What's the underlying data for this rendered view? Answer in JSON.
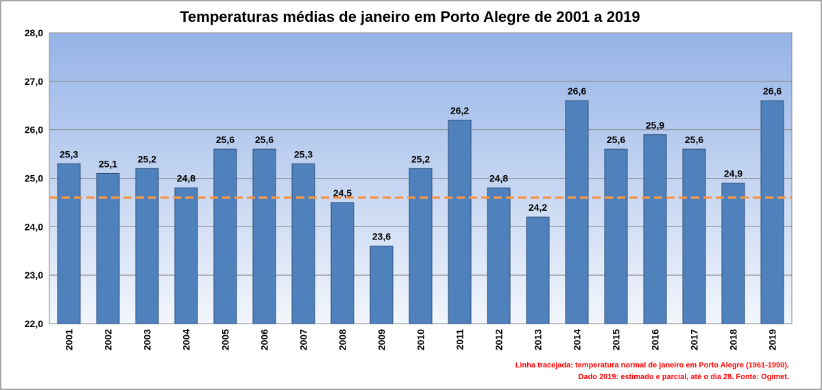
{
  "chart_data": {
    "type": "bar",
    "title": "Temperaturas médias de janeiro em Porto Alegre de 2001 a 2019",
    "xlabel": "",
    "ylabel": "",
    "categories": [
      "2001",
      "2002",
      "2003",
      "2004",
      "2005",
      "2006",
      "2007",
      "2008",
      "2009",
      "2010",
      "2011",
      "2012",
      "2013",
      "2014",
      "2015",
      "2016",
      "2017",
      "2018",
      "2019"
    ],
    "values": [
      25.3,
      25.1,
      25.2,
      24.8,
      25.6,
      25.6,
      25.3,
      24.5,
      23.6,
      25.2,
      26.2,
      24.8,
      24.2,
      26.6,
      25.6,
      25.9,
      25.6,
      24.9,
      26.6
    ],
    "data_labels": [
      "25,3",
      "25,1",
      "25,2",
      "24,8",
      "25,6",
      "25,6",
      "25,3",
      "24,5",
      "23,6",
      "25,2",
      "26,2",
      "24,8",
      "24,2",
      "26,6",
      "25,6",
      "25,9",
      "25,6",
      "24,9",
      "26,6"
    ],
    "ylim": [
      22.0,
      28.0
    ],
    "yticks": [
      22.0,
      23.0,
      24.0,
      25.0,
      26.0,
      27.0,
      28.0
    ],
    "ytick_labels": [
      "22,0",
      "23,0",
      "24,0",
      "25,0",
      "26,0",
      "27,0",
      "28,0"
    ],
    "grid": true,
    "legend": "none",
    "reference_line": {
      "value": 24.6,
      "style": "dashed",
      "color": "#f79646"
    },
    "colors": {
      "bar": "#4f81bd",
      "bar_edge": "#2c4d75",
      "plot_bg_top": "#95b3e7",
      "plot_bg_bottom": "#f2f6fc",
      "notes": "#ff0000"
    },
    "notes": [
      "Linha tracejada: temperatura normal de janeiro em Porto Alegre (1961-1990).",
      "Dado 2019: estimado e parcial, até o dia 28. Fonte: Ogimet."
    ]
  }
}
